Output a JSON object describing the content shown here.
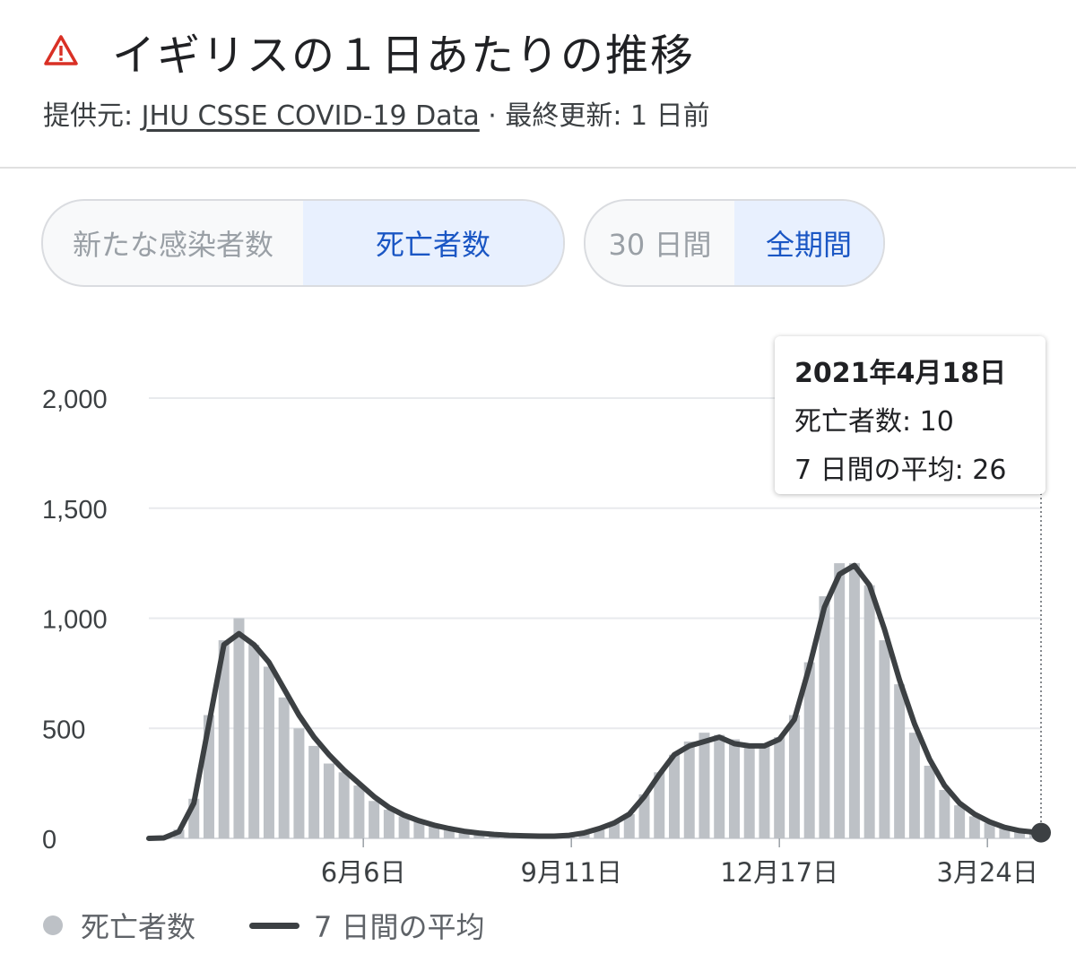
{
  "header": {
    "title": "イギリスの１日あたりの推移",
    "source_prefix": "提供元: ",
    "source_link": "JHU CSSE COVID-19 Data",
    "updated": " · 最終更新: 1 日前",
    "warning_icon": "warning-triangle-icon",
    "warning_color": "#d93025"
  },
  "metric_toggle": {
    "options": [
      "新たな感染者数",
      "死亡者数"
    ],
    "selected": "死亡者数"
  },
  "range_toggle": {
    "options": [
      "30 日間",
      "全期間"
    ],
    "selected": "全期間"
  },
  "tooltip": {
    "date": "2021年4月18日",
    "deaths_label": "死亡者数: 10",
    "avg_label": "7 日間の平均: 26"
  },
  "legend": {
    "bars": "死亡者数",
    "line": "7 日間の平均"
  },
  "colors": {
    "bars": "#bdc1c6",
    "line": "#3c4043",
    "accent": "#1a56c4",
    "grid": "#e8eaed"
  },
  "chart_data": {
    "type": "bar",
    "x_range": [
      "2020-02-27",
      "2021-04-18"
    ],
    "ylim": [
      0,
      2000
    ],
    "yticks": [
      0,
      500,
      1000,
      1500,
      2000
    ],
    "ytick_labels": [
      "0",
      "500",
      "1,000",
      "1,500",
      "2,000"
    ],
    "xticks": [
      "2020-06-06",
      "2020-09-11",
      "2020-12-17",
      "2021-03-24"
    ],
    "xtick_labels": [
      "6月6日",
      "9月11日",
      "12月17日",
      "3月24日"
    ],
    "grid": true,
    "legend_position": "bottom-left",
    "series": [
      {
        "name": "死亡者数",
        "type": "bar",
        "x": [
          "2020-02-27",
          "2020-03-05",
          "2020-03-12",
          "2020-03-19",
          "2020-03-26",
          "2020-04-02",
          "2020-04-09",
          "2020-04-16",
          "2020-04-23",
          "2020-04-30",
          "2020-05-07",
          "2020-05-14",
          "2020-05-21",
          "2020-05-28",
          "2020-06-04",
          "2020-06-11",
          "2020-06-18",
          "2020-06-25",
          "2020-07-02",
          "2020-07-09",
          "2020-07-16",
          "2020-07-23",
          "2020-07-30",
          "2020-08-06",
          "2020-08-13",
          "2020-08-20",
          "2020-08-27",
          "2020-09-03",
          "2020-09-10",
          "2020-09-17",
          "2020-09-24",
          "2020-10-01",
          "2020-10-08",
          "2020-10-15",
          "2020-10-22",
          "2020-10-29",
          "2020-11-05",
          "2020-11-12",
          "2020-11-19",
          "2020-11-26",
          "2020-12-03",
          "2020-12-10",
          "2020-12-17",
          "2020-12-24",
          "2020-12-31",
          "2021-01-07",
          "2021-01-14",
          "2021-01-21",
          "2021-01-28",
          "2021-02-04",
          "2021-02-11",
          "2021-02-18",
          "2021-02-25",
          "2021-03-04",
          "2021-03-11",
          "2021-03-18",
          "2021-03-25",
          "2021-04-01",
          "2021-04-08",
          "2021-04-15",
          "2021-04-18"
        ],
        "values": [
          0,
          2,
          40,
          180,
          560,
          900,
          1000,
          880,
          780,
          640,
          500,
          420,
          340,
          300,
          240,
          170,
          130,
          100,
          80,
          60,
          45,
          30,
          22,
          15,
          12,
          10,
          9,
          10,
          15,
          30,
          50,
          70,
          110,
          200,
          300,
          380,
          440,
          480,
          470,
          450,
          430,
          420,
          460,
          560,
          800,
          1100,
          1250,
          1250,
          1150,
          900,
          700,
          480,
          330,
          220,
          150,
          100,
          70,
          50,
          30,
          20,
          10
        ]
      },
      {
        "name": "7 日間の平均",
        "type": "line",
        "x": [
          "2020-02-27",
          "2020-03-05",
          "2020-03-12",
          "2020-03-19",
          "2020-03-26",
          "2020-04-02",
          "2020-04-09",
          "2020-04-16",
          "2020-04-23",
          "2020-04-30",
          "2020-05-07",
          "2020-05-14",
          "2020-05-21",
          "2020-05-28",
          "2020-06-04",
          "2020-06-11",
          "2020-06-18",
          "2020-06-25",
          "2020-07-02",
          "2020-07-09",
          "2020-07-16",
          "2020-07-23",
          "2020-07-30",
          "2020-08-06",
          "2020-08-13",
          "2020-08-20",
          "2020-08-27",
          "2020-09-03",
          "2020-09-10",
          "2020-09-17",
          "2020-09-24",
          "2020-10-01",
          "2020-10-08",
          "2020-10-15",
          "2020-10-22",
          "2020-10-29",
          "2020-11-05",
          "2020-11-12",
          "2020-11-19",
          "2020-11-26",
          "2020-12-03",
          "2020-12-10",
          "2020-12-17",
          "2020-12-24",
          "2020-12-31",
          "2021-01-07",
          "2021-01-14",
          "2021-01-21",
          "2021-01-28",
          "2021-02-04",
          "2021-02-11",
          "2021-02-18",
          "2021-02-25",
          "2021-03-04",
          "2021-03-11",
          "2021-03-18",
          "2021-03-25",
          "2021-04-01",
          "2021-04-08",
          "2021-04-15",
          "2021-04-18"
        ],
        "values": [
          0,
          2,
          30,
          160,
          520,
          880,
          930,
          880,
          800,
          680,
          560,
          460,
          380,
          310,
          250,
          190,
          140,
          105,
          80,
          60,
          45,
          32,
          24,
          18,
          14,
          12,
          10,
          10,
          14,
          25,
          45,
          70,
          110,
          190,
          290,
          380,
          420,
          440,
          460,
          430,
          420,
          420,
          450,
          540,
          780,
          1050,
          1200,
          1240,
          1150,
          950,
          720,
          520,
          360,
          240,
          160,
          110,
          75,
          50,
          35,
          28,
          26
        ]
      }
    ],
    "highlight": {
      "x": "2021-04-18",
      "value": 10,
      "avg": 26
    }
  }
}
